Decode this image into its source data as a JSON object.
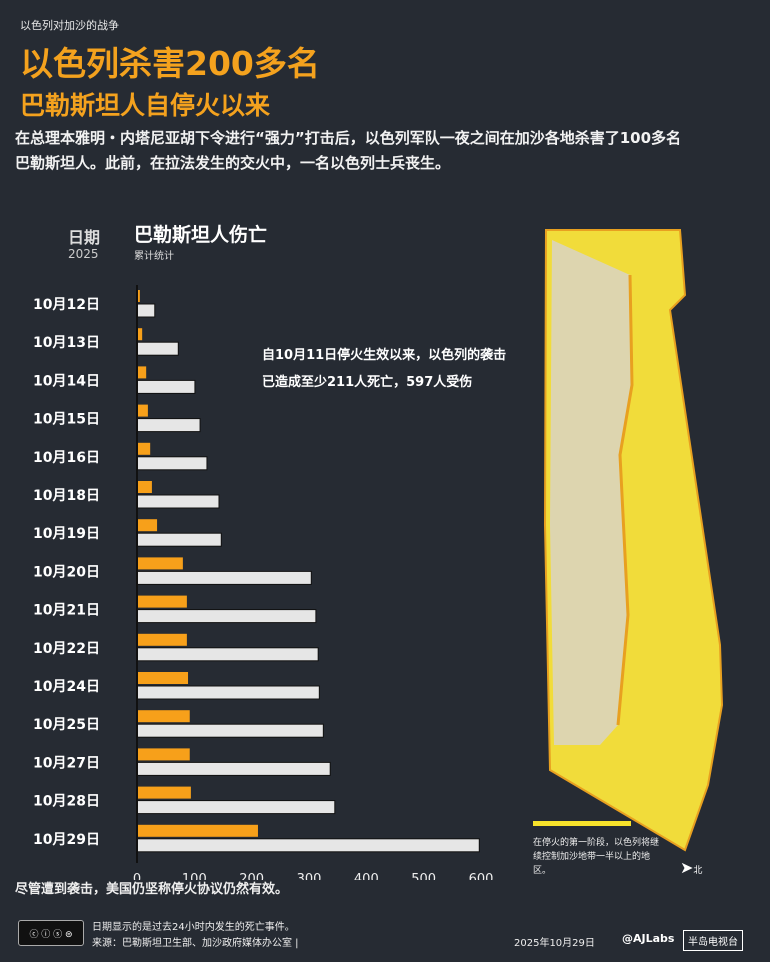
{
  "header": {
    "kicker": "以色列对加沙的战争",
    "title_line1": "以色列杀害200多名",
    "title_line2": "巴勒斯坦人自停火以来",
    "description": "在总理本雅明・内塔尼亚胡下令进行“强力”打击后，以色列军队一夜之间在加沙各地杀害了100多名巴勒斯坦人。此前，在拉法发生的交火中，一名以色列士兵丧生。"
  },
  "chart_labels": {
    "date_header": "日期",
    "year": "2025",
    "title": "巴勒斯坦人伤亡",
    "subtitle": "累计统计",
    "annotation_line1": "自10月11日停火生效以来，以色列的袭击",
    "annotation_line2": "已造成至少211人死亡，597人受伤"
  },
  "chart_data": {
    "type": "bar",
    "orientation": "horizontal",
    "title": "巴勒斯坦人伤亡",
    "subtitle": "累计统计",
    "categories": [
      "10月12日",
      "10月13日",
      "10月14日",
      "10月15日",
      "10月16日",
      "10月18日",
      "10月19日",
      "10月20日",
      "10月21日",
      "10月22日",
      "10月24日",
      "10月25日",
      "10月27日",
      "10月28日",
      "10月29日"
    ],
    "series": [
      {
        "color": "#f7a01a",
        "values": [
          5,
          9,
          16,
          19,
          23,
          26,
          35,
          80,
          87,
          87,
          89,
          92,
          92,
          94,
          211
        ]
      },
      {
        "color": "#e6e6e6",
        "values": [
          31,
          72,
          101,
          110,
          122,
          143,
          147,
          304,
          312,
          316,
          318,
          325,
          337,
          345,
          597
        ]
      }
    ],
    "xlim": [
      0,
      600
    ],
    "xticks": [
      0,
      100,
      200,
      300,
      400,
      500,
      600
    ],
    "grid": false
  },
  "map": {
    "legend": "在停火的第一阶段，以色列将继续控制加沙地带一半以上的地区。",
    "north": "北",
    "fill_color": "#f7e22b"
  },
  "footer": {
    "note": "尽管遭到袭击，美国仍坚称停火协议仍然有效。",
    "line1": "日期显示的是过去24小时内发生的死亡事件。",
    "line2": "来源：巴勒斯坦卫生部、加沙政府媒体办公室 |",
    "date": "2025年10月29日",
    "handle": "@AJLabs",
    "brand": "半岛电视台",
    "license": "cc"
  }
}
